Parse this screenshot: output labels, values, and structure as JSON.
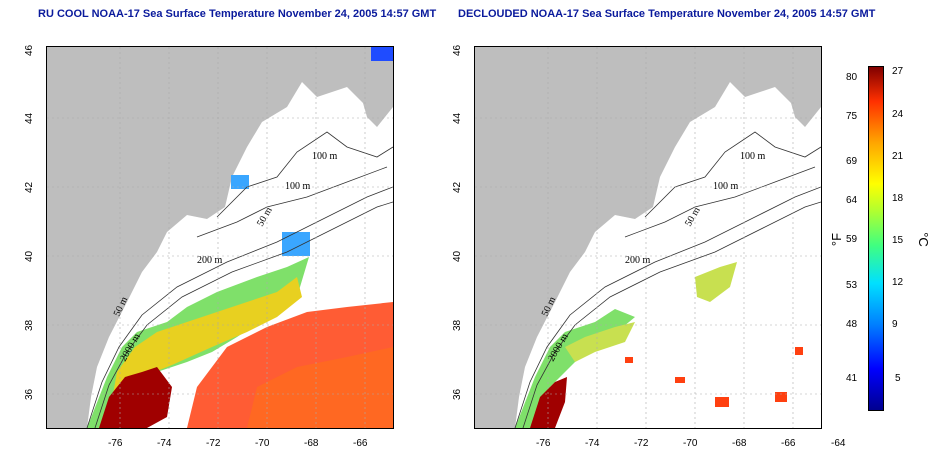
{
  "titles": {
    "left": "RU COOL NOAA-17 Sea Surface Temperature November 24, 2005 14:57 GMT",
    "right": "DECLOUDED NOAA-17 Sea Surface Temperature November 24, 2005 14:57 GMT"
  },
  "x_ticks": [
    "-76",
    "-74",
    "-72",
    "-70",
    "-68",
    "-66",
    "-64"
  ],
  "y_ticks": [
    "36",
    "38",
    "40",
    "42",
    "44",
    "46"
  ],
  "contour_labels": [
    "100 m",
    "100 m",
    "50 m",
    "200 m",
    "50 m",
    "2000 m"
  ],
  "colorbar": {
    "fahrenheit_unit": "°F",
    "celsius_unit": "°C",
    "fahrenheit_ticks": [
      "80",
      "75",
      "69",
      "64",
      "59",
      "53",
      "48",
      "41"
    ],
    "celsius_ticks": [
      "27",
      "24",
      "21",
      "18",
      "15",
      "12",
      "9",
      "5"
    ]
  },
  "colors": {
    "title": "#0a1a9c",
    "land": "#bebebe",
    "contour": "#333333"
  }
}
